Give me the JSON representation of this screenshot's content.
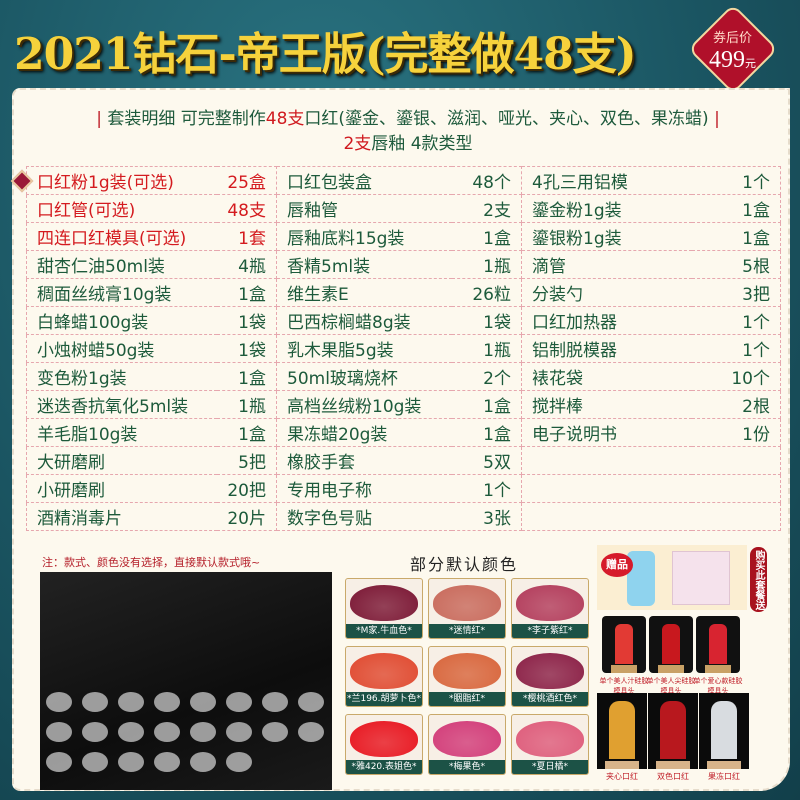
{
  "header": {
    "title": "2021钻石-帝王版(完整做48支)",
    "price_label": "券后价",
    "price": "499",
    "price_unit": "元"
  },
  "subtitle": {
    "prefix": "套装明细 可完整制作",
    "count": "48支",
    "suffix": "口红(鎏金、鎏银、滋润、哑光、夹心、双色、果冻蜡)",
    "line2_count": "2支",
    "line2_suffix": "唇釉 4款类型"
  },
  "colors": {
    "background": "#1b5663",
    "title": "#f6d23c",
    "text": "#1d5a3b",
    "highlight": "#d41b1f",
    "panel": "#fdf9ee"
  },
  "table": {
    "rows": [
      {
        "c1": [
          "口红粉1g装(可选)",
          "25盒"
        ],
        "c2": [
          "口红包装盒",
          "48个"
        ],
        "c3": [
          "4孔三用铝模",
          "1个"
        ],
        "highlight": true
      },
      {
        "c1": [
          "口红管(可选)",
          "48支"
        ],
        "c2": [
          "唇釉管",
          "2支"
        ],
        "c3": [
          "鎏金粉1g装",
          "1盒"
        ],
        "highlight": true
      },
      {
        "c1": [
          "四连口红模具(可选)",
          "1套"
        ],
        "c2": [
          "唇釉底料15g装",
          "1盒"
        ],
        "c3": [
          "鎏银粉1g装",
          "1盒"
        ],
        "highlight": true
      },
      {
        "c1": [
          "甜杏仁油50ml装",
          "4瓶"
        ],
        "c2": [
          "香精5ml装",
          "1瓶"
        ],
        "c3": [
          "滴管",
          "5根"
        ]
      },
      {
        "c1": [
          "稠面丝绒膏10g装",
          "1盒"
        ],
        "c2": [
          "维生素E",
          "26粒"
        ],
        "c3": [
          "分装勺",
          "3把"
        ]
      },
      {
        "c1": [
          "白蜂蜡100g装",
          "1袋"
        ],
        "c2": [
          "巴西棕榈蜡8g装",
          "1袋"
        ],
        "c3": [
          "口红加热器",
          "1个"
        ]
      },
      {
        "c1": [
          "小烛树蜡50g装",
          "1袋"
        ],
        "c2": [
          "乳木果脂5g装",
          "1瓶"
        ],
        "c3": [
          "铝制脱模器",
          "1个"
        ]
      },
      {
        "c1": [
          "变色粉1g装",
          "1盒"
        ],
        "c2": [
          "50ml玻璃烧杯",
          "2个"
        ],
        "c3": [
          "裱花袋",
          "10个"
        ]
      },
      {
        "c1": [
          "迷迭香抗氧化5ml装",
          "1瓶"
        ],
        "c2": [
          "高档丝绒粉10g装",
          "1盒"
        ],
        "c3": [
          "搅拌棒",
          "2根"
        ]
      },
      {
        "c1": [
          "羊毛脂10g装",
          "1盒"
        ],
        "c2": [
          "果冻蜡20g装",
          "1盒"
        ],
        "c3": [
          "电子说明书",
          "1份"
        ]
      },
      {
        "c1": [
          "大研磨刷",
          "5把"
        ],
        "c2": [
          "橡胶手套",
          "5双"
        ],
        "c3": [
          "",
          ""
        ]
      },
      {
        "c1": [
          "小研磨刷",
          "20把"
        ],
        "c2": [
          "专用电子称",
          "1个"
        ],
        "c3": [
          "",
          ""
        ]
      },
      {
        "c1": [
          "酒精消毒片",
          "20片"
        ],
        "c2": [
          "数字色号贴",
          "3张"
        ],
        "c3": [
          "",
          ""
        ]
      }
    ]
  },
  "note": "注：款式、颜色没有选择，直接默认款式哦~",
  "colors_section": {
    "title": "部分默认颜色",
    "swatches": [
      {
        "name": "*M家.牛血色*",
        "color": "#7a1533"
      },
      {
        "name": "*迷情红*",
        "color": "#c8685a"
      },
      {
        "name": "*李子紫红*",
        "color": "#b23a5a"
      },
      {
        "name": "*兰196.胡萝卜色*",
        "color": "#e0482e"
      },
      {
        "name": "*胭脂红*",
        "color": "#d8643a"
      },
      {
        "name": "*樱桃酒红色*",
        "color": "#8a1e45"
      },
      {
        "name": "*雅420.表姐色*",
        "color": "#e8141e"
      },
      {
        "name": "*梅果色*",
        "color": "#d23a78"
      },
      {
        "name": "*夏日橘*",
        "color": "#de5a7a"
      }
    ]
  },
  "gift": {
    "badge": "赠品",
    "side_label": "购买此套餐送"
  },
  "molds": [
    {
      "caption": "单个美人汁硅胶模具头",
      "color": "#e23a34"
    },
    {
      "caption": "单个美人尖硅胶模具头",
      "color": "#c8181e"
    },
    {
      "caption": "单个爱心款硅胶模具头",
      "color": "#d82430"
    }
  ],
  "tubes": [
    {
      "caption": "夹心口红",
      "color": "#e0a030"
    },
    {
      "caption": "双色口红",
      "color": "#b8181e"
    },
    {
      "caption": "果冻口红",
      "color": "#d8dce0"
    }
  ]
}
